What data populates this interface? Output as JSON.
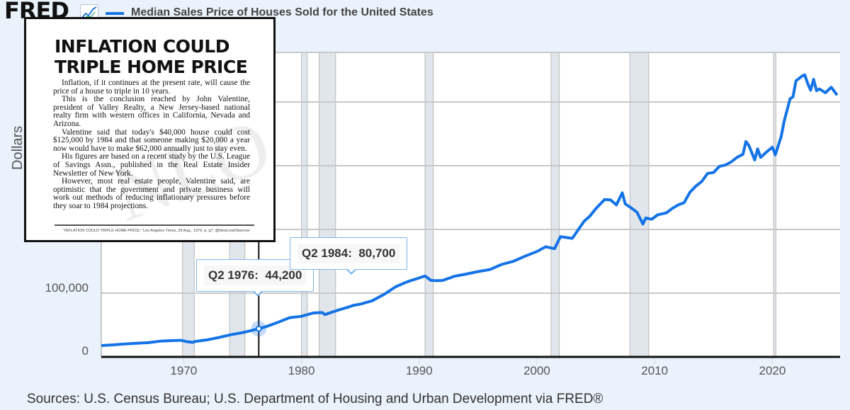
{
  "header": {
    "logo_text": "FRED",
    "logo_icon": "chart-line-icon",
    "title": "Median Sales Price of Houses Sold for the United States",
    "series_color": "#1473e6"
  },
  "source_text": "Sources: U.S. Census Bureau; U.S. Department of Housing and Urban Development via FRED®",
  "clipping": {
    "headline_line1": "INFLATION COULD",
    "headline_line2": "TRIPLE HOME PRICE",
    "paragraphs": [
      "Inflation, if it continues at the present rate, will cause the price of a house to triple in 10 years.",
      "This is the conclusion reached by John Valentine, president of Valley Realty, a New Jersey-based national realty firm with western offices in California, Nevada and Arizona.",
      "Valentine said that today's $40,000 house could cost $125,000 by 1984 and that someone making $20,000 a year now would have to make $62,000 annually just to stay even.",
      "His figures are based on a recent study by the U.S. League of Savings Assn., published in the Real Estate Insider Newsletter of New York.",
      "However, most real estate people, Valentine said, are optimistic that the government and private business will work out methods of reducing inflationary pressures before they soar to 1984 projections."
    ],
    "caption": "\"INFLATION COULD TRIPLE HOME PRICE.\" Los Angeles Times, 29 Aug., 1976, p. g7. @NewLowObserver",
    "watermark": "NLO"
  },
  "tooltips": [
    {
      "label": "Q2 1976:  44,200"
    },
    {
      "label": "Q2 1984:  80,700"
    }
  ],
  "chart_data": {
    "type": "line",
    "title": "Median Sales Price of Houses Sold for the United States",
    "xlabel": "",
    "ylabel": "Dollars",
    "xlim": [
      1963.0,
      2025.75
    ],
    "ylim": [
      0,
      460000
    ],
    "grid": true,
    "x_ticks": [
      1970,
      1980,
      1990,
      2000,
      2010,
      2020
    ],
    "x_tick_labels": [
      "1970",
      "1980",
      "1990",
      "2000",
      "2010",
      "2020"
    ],
    "y_ticks": [
      0,
      100000,
      200000,
      300000,
      400000
    ],
    "y_tick_labels_visible": [
      "0",
      "100,000"
    ],
    "recessions": [
      [
        1969.9,
        1970.9
      ],
      [
        1973.9,
        1975.2
      ],
      [
        1980.0,
        1980.5
      ],
      [
        1981.5,
        1982.9
      ],
      [
        1990.5,
        1991.2
      ],
      [
        2001.2,
        2001.9
      ],
      [
        2007.9,
        2009.5
      ],
      [
        2020.1,
        2020.3
      ]
    ],
    "highlight_points": [
      {
        "x": 1976.375,
        "label": "Q2 1976",
        "value": 44200
      },
      {
        "x": 1984.375,
        "label": "Q2 1984",
        "value": 80700
      }
    ],
    "series": [
      {
        "name": "Median Sales Price of Houses Sold for the United States",
        "color": "#1473e6",
        "points": [
          [
            1963.0,
            17800
          ],
          [
            1964.0,
            18900
          ],
          [
            1965.0,
            20200
          ],
          [
            1966.0,
            21400
          ],
          [
            1967.0,
            22300
          ],
          [
            1968.0,
            24700
          ],
          [
            1969.0,
            25600
          ],
          [
            1969.75,
            26000
          ],
          [
            1970.25,
            24000
          ],
          [
            1970.75,
            22800
          ],
          [
            1971.0,
            24300
          ],
          [
            1972.0,
            26800
          ],
          [
            1973.0,
            30500
          ],
          [
            1974.0,
            34800
          ],
          [
            1975.0,
            38100
          ],
          [
            1975.75,
            41300
          ],
          [
            1976.375,
            44200
          ],
          [
            1977.0,
            47500
          ],
          [
            1978.0,
            54200
          ],
          [
            1979.0,
            61500
          ],
          [
            1980.0,
            63700
          ],
          [
            1981.0,
            68900
          ],
          [
            1981.75,
            69500
          ],
          [
            1982.0,
            66400
          ],
          [
            1982.5,
            69500
          ],
          [
            1983.0,
            72700
          ],
          [
            1984.0,
            78200
          ],
          [
            1984.375,
            80700
          ],
          [
            1985.0,
            82800
          ],
          [
            1986.0,
            88000
          ],
          [
            1987.0,
            97900
          ],
          [
            1988.0,
            110000
          ],
          [
            1988.5,
            114000
          ],
          [
            1989.0,
            118000
          ],
          [
            1990.0,
            123900
          ],
          [
            1990.5,
            127000
          ],
          [
            1991.0,
            120000
          ],
          [
            1991.5,
            119500
          ],
          [
            1992.0,
            120000
          ],
          [
            1993.0,
            126500
          ],
          [
            1994.0,
            130000
          ],
          [
            1995.0,
            133900
          ],
          [
            1996.0,
            137000
          ],
          [
            1997.0,
            145000
          ],
          [
            1998.0,
            150000
          ],
          [
            1999.0,
            158100
          ],
          [
            2000.0,
            165300
          ],
          [
            2000.75,
            172900
          ],
          [
            2001.5,
            169800
          ],
          [
            2002.0,
            188700
          ],
          [
            2003.0,
            186000
          ],
          [
            2004.0,
            212700
          ],
          [
            2004.5,
            221000
          ],
          [
            2005.0,
            232500
          ],
          [
            2005.75,
            247000
          ],
          [
            2006.25,
            246300
          ],
          [
            2006.75,
            238500
          ],
          [
            2007.25,
            257400
          ],
          [
            2007.5,
            240000
          ],
          [
            2008.0,
            233900
          ],
          [
            2008.5,
            227000
          ],
          [
            2009.0,
            208400
          ],
          [
            2009.25,
            218000
          ],
          [
            2009.75,
            216000
          ],
          [
            2010.25,
            222900
          ],
          [
            2011.0,
            226000
          ],
          [
            2011.5,
            233000
          ],
          [
            2012.0,
            238400
          ],
          [
            2012.5,
            242000
          ],
          [
            2013.0,
            258400
          ],
          [
            2013.5,
            268000
          ],
          [
            2014.0,
            275200
          ],
          [
            2014.5,
            288000
          ],
          [
            2015.0,
            289200
          ],
          [
            2015.5,
            299000
          ],
          [
            2016.0,
            301000
          ],
          [
            2016.5,
            306000
          ],
          [
            2017.0,
            313100
          ],
          [
            2017.5,
            318000
          ],
          [
            2017.75,
            337900
          ],
          [
            2018.0,
            331800
          ],
          [
            2018.5,
            309000
          ],
          [
            2018.75,
            326400
          ],
          [
            2019.0,
            313000
          ],
          [
            2019.5,
            321500
          ],
          [
            2020.0,
            329000
          ],
          [
            2020.25,
            317100
          ],
          [
            2020.75,
            346000
          ],
          [
            2021.0,
            369800
          ],
          [
            2021.5,
            405000
          ],
          [
            2021.75,
            408100
          ],
          [
            2022.0,
            433100
          ],
          [
            2022.5,
            440300
          ],
          [
            2022.75,
            442600
          ],
          [
            2023.0,
            429000
          ],
          [
            2023.25,
            418500
          ],
          [
            2023.5,
            435400
          ],
          [
            2023.75,
            417700
          ],
          [
            2024.0,
            420500
          ],
          [
            2024.5,
            414500
          ],
          [
            2025.0,
            423100
          ],
          [
            2025.5,
            410800
          ]
        ]
      }
    ]
  }
}
